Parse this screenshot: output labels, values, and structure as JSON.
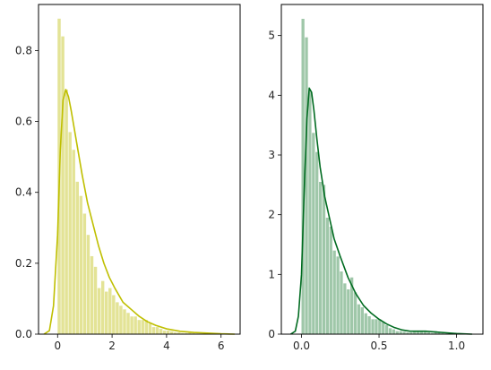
{
  "chart_data": [
    {
      "type": "histogram-kde",
      "color": "#bfbf00",
      "bar_color": "#e3e396",
      "xlim": [
        -0.7,
        6.7
      ],
      "ylim": [
        0,
        0.93
      ],
      "xticks": [
        0,
        2,
        4,
        6
      ],
      "xtick_labels": [
        "0",
        "2",
        "4",
        "6"
      ],
      "yticks": [
        0,
        0.2,
        0.4,
        0.6,
        0.8
      ],
      "ytick_labels": [
        "0.0",
        "0.2",
        "0.4",
        "0.6",
        "0.8"
      ],
      "bins": {
        "edges": [
          0,
          0.1333,
          0.2667,
          0.4,
          0.5333,
          0.6667,
          0.8,
          0.9333,
          1.0667,
          1.2,
          1.3333,
          1.4667,
          1.6,
          1.7333,
          1.8667,
          2.0,
          2.1333,
          2.2667,
          2.4,
          2.5333,
          2.6667,
          2.8,
          2.9333,
          3.0667,
          3.2,
          3.3333,
          3.4667,
          3.6,
          3.7333,
          3.8667,
          4.0,
          4.1333,
          4.2667,
          4.4,
          4.5333,
          4.6667,
          4.8,
          4.9333,
          5.0667,
          5.2,
          5.3333,
          5.4667,
          5.6,
          5.7333,
          5.8667,
          6.0,
          6.1333,
          6.2667,
          6.4
        ],
        "heights": [
          0.89,
          0.84,
          0.69,
          0.57,
          0.52,
          0.43,
          0.39,
          0.34,
          0.28,
          0.22,
          0.19,
          0.13,
          0.15,
          0.12,
          0.13,
          0.11,
          0.09,
          0.08,
          0.07,
          0.06,
          0.05,
          0.05,
          0.04,
          0.04,
          0.04,
          0.03,
          0.02,
          0.02,
          0.015,
          0.01,
          0.01,
          0.008,
          0.005,
          0.005,
          0.003,
          0.003,
          0.005,
          0.003,
          0.002,
          0.002,
          0.003,
          0.002,
          0.001,
          0.001,
          0.002,
          0.001,
          0.001,
          0.001
        ]
      },
      "kde": {
        "x": [
          -0.5,
          -0.3,
          -0.15,
          0,
          0.1,
          0.2,
          0.3,
          0.4,
          0.5,
          0.7,
          0.9,
          1.1,
          1.3,
          1.5,
          1.7,
          1.9,
          2.1,
          2.4,
          2.7,
          3.0,
          3.3,
          3.6,
          4.0,
          4.5,
          5.0,
          5.5,
          6.0,
          6.5
        ],
        "y": [
          0,
          0.01,
          0.08,
          0.28,
          0.52,
          0.66,
          0.69,
          0.67,
          0.63,
          0.54,
          0.45,
          0.37,
          0.31,
          0.25,
          0.2,
          0.16,
          0.13,
          0.09,
          0.07,
          0.05,
          0.035,
          0.025,
          0.015,
          0.008,
          0.005,
          0.003,
          0.001,
          0
        ]
      }
    },
    {
      "type": "histogram-kde",
      "color": "#006b20",
      "bar_color": "#9fc7a9",
      "xlim": [
        -0.13,
        1.17
      ],
      "ylim": [
        0,
        5.52
      ],
      "xticks": [
        0,
        0.5,
        1.0
      ],
      "xtick_labels": [
        "0.0",
        "0.5",
        "1.0"
      ],
      "yticks": [
        0,
        1,
        2,
        3,
        4,
        5
      ],
      "ytick_labels": [
        "0",
        "1",
        "2",
        "3",
        "4",
        "5"
      ],
      "bins": {
        "edges": [
          0,
          0.0225,
          0.045,
          0.0675,
          0.09,
          0.1125,
          0.135,
          0.1575,
          0.18,
          0.2025,
          0.225,
          0.2475,
          0.27,
          0.2925,
          0.315,
          0.3375,
          0.36,
          0.3825,
          0.405,
          0.4275,
          0.45,
          0.4725,
          0.495,
          0.5175,
          0.54,
          0.5625,
          0.585,
          0.6075,
          0.63,
          0.6525,
          0.675,
          0.6975,
          0.72,
          0.7425,
          0.765,
          0.7875,
          0.81,
          0.8325,
          0.855,
          0.8775,
          0.9,
          0.9225,
          0.945,
          0.9675,
          0.99,
          1.0125
        ],
        "heights": [
          5.28,
          4.97,
          4.06,
          3.37,
          3.05,
          2.55,
          2.5,
          1.95,
          1.8,
          1.4,
          1.3,
          1.05,
          0.85,
          0.75,
          0.95,
          0.7,
          0.5,
          0.45,
          0.35,
          0.3,
          0.25,
          0.25,
          0.25,
          0.2,
          0.15,
          0.1,
          0.08,
          0.05,
          0.05,
          0.04,
          0.03,
          0.03,
          0.05,
          0.06,
          0.04,
          0.06,
          0.03,
          0.02,
          0.05,
          0.03,
          0.02,
          0.01,
          0.01,
          0.01,
          0.01
        ]
      },
      "kde": {
        "x": [
          -0.07,
          -0.04,
          -0.02,
          0,
          0.02,
          0.035,
          0.05,
          0.065,
          0.08,
          0.1,
          0.12,
          0.15,
          0.18,
          0.21,
          0.25,
          0.3,
          0.35,
          0.4,
          0.45,
          0.5,
          0.55,
          0.6,
          0.65,
          0.7,
          0.8,
          0.9,
          1.0,
          1.1
        ],
        "y": [
          0,
          0.05,
          0.3,
          1.0,
          2.6,
          3.6,
          4.12,
          4.05,
          3.75,
          3.25,
          2.8,
          2.3,
          1.95,
          1.6,
          1.3,
          0.95,
          0.68,
          0.48,
          0.35,
          0.25,
          0.17,
          0.11,
          0.07,
          0.05,
          0.05,
          0.03,
          0.01,
          0
        ]
      }
    }
  ]
}
